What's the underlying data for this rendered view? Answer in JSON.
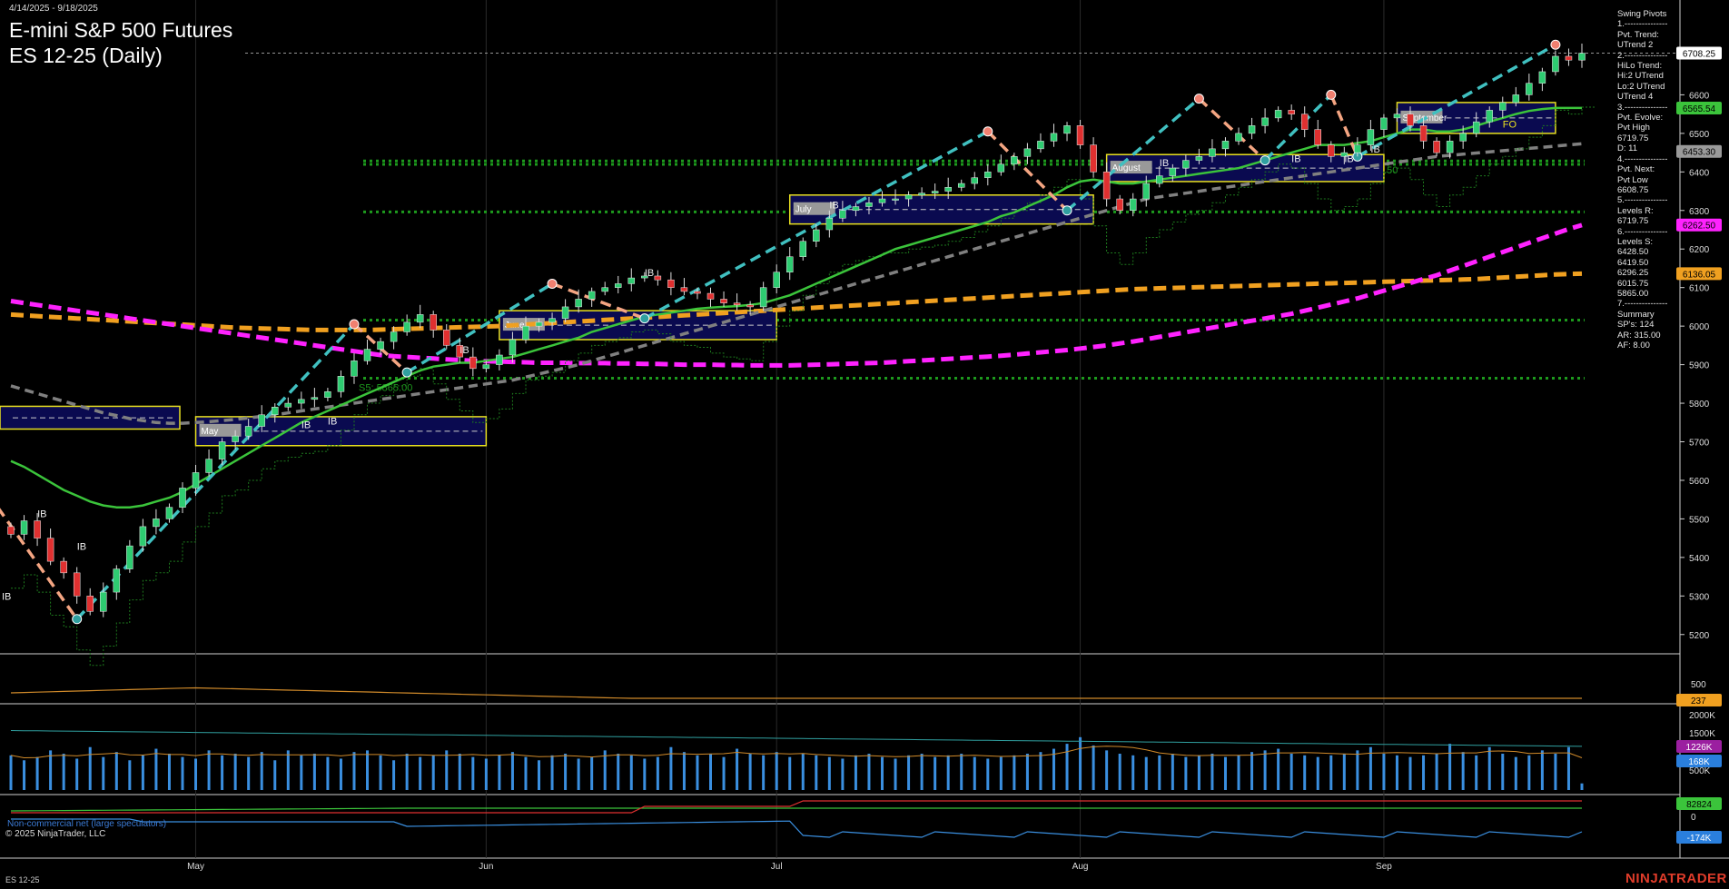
{
  "header": {
    "date_range": "4/14/2025 - 9/18/2025",
    "title": "E-mini S&P 500 Futures",
    "subtitle": "ES 12-25 (Daily)"
  },
  "sidebar": {
    "lines": [
      "Swing Pivots",
      "1.---------------",
      "Pvt. Trend:",
      "UTrend 2",
      "2.---------------",
      "HiLo Trend:",
      "Hi:2 UTrend",
      "Lo:2 UTrend",
      "UTrend 4",
      "3.---------------",
      "Pvt. Evolve:",
      "Pvt High",
      "6719.75",
      "D: 11",
      "4.---------------",
      "Pvt. Next:",
      "Pvt Low",
      "6608.75",
      "5.---------------",
      "Levels R:",
      "6719.75",
      "6.---------------",
      "Levels S:",
      "6428.50",
      "6419.50",
      "6296.25",
      "6015.75",
      "5865.00",
      "7.---------------",
      "Summary",
      "SP's: 124",
      "AR: 315.00",
      "AF: 8.00"
    ]
  },
  "colors": {
    "up": "#2ecc71",
    "down": "#e03030",
    "swing_up": "#40c0c0",
    "swing_down": "#f4a582",
    "ema_fast": "#3bc43b",
    "ma_gray": "#808080",
    "ma_magenta": "#ff22ff",
    "ma_orange": "#f0a020",
    "volume": "#3a8fe0",
    "support": "#1d9a1d"
  },
  "chart_data": {
    "type": "candlestick",
    "x_axis": {
      "ticks": [
        "May",
        "Jun",
        "Jul",
        "Aug",
        "Sep"
      ]
    },
    "y_axis": {
      "ticks": [
        5200,
        5300,
        5400,
        5500,
        5600,
        5700,
        5800,
        5900,
        6000,
        6100,
        6200,
        6300,
        6400,
        6500,
        6600
      ],
      "range": [
        5150,
        6780
      ]
    },
    "price_badges": [
      {
        "value": "6708.25",
        "color": "#ffffff",
        "text_color": "#000000"
      },
      {
        "value": "6565.54",
        "color": "#3bc43b",
        "text_color": "#000000"
      },
      {
        "value": "6453.30",
        "color": "#9a9a9a",
        "text_color": "#000000"
      },
      {
        "value": "6262.50",
        "color": "#ff22ff",
        "text_color": "#000000"
      },
      {
        "value": "6136.05",
        "color": "#f0a020",
        "text_color": "#000000"
      }
    ],
    "current_price": 6708.25,
    "levels": [
      {
        "value": 6428.5,
        "label": "S1: 6428.50"
      },
      {
        "value": 6419.5,
        "label": "S2: 6419.50"
      },
      {
        "value": 6296.25,
        "label": "S3: 6296.25"
      },
      {
        "value": 6015.75,
        "label": "S4: 6015.75"
      },
      {
        "value": 5865.0,
        "label": "S5: 5865.00"
      }
    ],
    "month_boxes": [
      {
        "label": "May",
        "start": 14,
        "end": 36,
        "high": 5765,
        "low": 5690
      },
      {
        "label": "June",
        "start": 37,
        "end": 58,
        "high": 6040,
        "low": 5965
      },
      {
        "label": "July",
        "start": 59,
        "end": 82,
        "high": 6340,
        "low": 6265
      },
      {
        "label": "August",
        "start": 83,
        "end": 104,
        "high": 6445,
        "low": 6375
      },
      {
        "label": "September",
        "start": 105,
        "end": 117,
        "high": 6580,
        "low": 6500
      }
    ],
    "pivot_labels": [
      "IB",
      "FO"
    ],
    "closes": [
      5460,
      5495,
      5450,
      5390,
      5360,
      5300,
      5260,
      5310,
      5370,
      5430,
      5480,
      5500,
      5530,
      5580,
      5620,
      5655,
      5700,
      5715,
      5740,
      5770,
      5790,
      5800,
      5810,
      5815,
      5830,
      5870,
      5910,
      5940,
      5960,
      5985,
      6010,
      6030,
      5990,
      5950,
      5920,
      5890,
      5900,
      5925,
      5965,
      6000,
      6010,
      6020,
      6050,
      6070,
      6090,
      6100,
      6110,
      6125,
      6130,
      6120,
      6100,
      6090,
      6085,
      6070,
      6060,
      6055,
      6050,
      6100,
      6140,
      6180,
      6220,
      6250,
      6280,
      6300,
      6310,
      6320,
      6330,
      6330,
      6340,
      6345,
      6350,
      6360,
      6370,
      6385,
      6400,
      6420,
      6440,
      6460,
      6480,
      6500,
      6520,
      6470,
      6400,
      6330,
      6300,
      6330,
      6370,
      6390,
      6410,
      6430,
      6440,
      6460,
      6480,
      6500,
      6520,
      6540,
      6560,
      6550,
      6510,
      6470,
      6440,
      6450,
      6470,
      6510,
      6540,
      6550,
      6520,
      6480,
      6450,
      6480,
      6500,
      6530,
      6560,
      6580,
      6600,
      6630,
      6660,
      6700,
      6690,
      6708
    ],
    "ema_fast": [
      5650,
      5635,
      5615,
      5595,
      5575,
      5560,
      5545,
      5535,
      5530,
      5530,
      5535,
      5545,
      5555,
      5570,
      5590,
      5610,
      5630,
      5650,
      5670,
      5690,
      5710,
      5730,
      5750,
      5765,
      5780,
      5795,
      5810,
      5825,
      5840,
      5855,
      5870,
      5885,
      5895,
      5900,
      5905,
      5905,
      5910,
      5915,
      5920,
      5930,
      5940,
      5950,
      5960,
      5970,
      5985,
      5995,
      6005,
      6015,
      6025,
      6030,
      6035,
      6040,
      6045,
      6048,
      6050,
      6052,
      6055,
      6060,
      6070,
      6080,
      6095,
      6110,
      6125,
      6140,
      6155,
      6170,
      6185,
      6200,
      6210,
      6220,
      6230,
      6240,
      6250,
      6260,
      6270,
      6285,
      6295,
      6310,
      6325,
      6340,
      6360,
      6375,
      6380,
      6375,
      6370,
      6370,
      6375,
      6380,
      6385,
      6390,
      6395,
      6400,
      6405,
      6410,
      6420,
      6430,
      6440,
      6450,
      6460,
      6470,
      6470,
      6470,
      6475,
      6480,
      6490,
      6500,
      6510,
      6510,
      6505,
      6505,
      6510,
      6520,
      6530,
      6540,
      6550,
      6558,
      6563,
      6566,
      6566,
      6566
    ],
    "sma_gray": [
      5845,
      5835,
      5825,
      5815,
      5805,
      5795,
      5785,
      5775,
      5768,
      5760,
      5755,
      5750,
      5748,
      5748,
      5750,
      5752,
      5755,
      5758,
      5762,
      5766,
      5770,
      5775,
      5780,
      5785,
      5790,
      5795,
      5800,
      5805,
      5810,
      5815,
      5820,
      5825,
      5830,
      5835,
      5840,
      5845,
      5850,
      5855,
      5860,
      5868,
      5876,
      5884,
      5892,
      5900,
      5910,
      5920,
      5930,
      5940,
      5950,
      5960,
      5970,
      5980,
      5990,
      6000,
      6010,
      6020,
      6030,
      6040,
      6050,
      6060,
      6070,
      6080,
      6090,
      6100,
      6110,
      6120,
      6130,
      6140,
      6150,
      6160,
      6170,
      6180,
      6190,
      6200,
      6210,
      6220,
      6230,
      6240,
      6250,
      6260,
      6270,
      6280,
      6290,
      6300,
      6310,
      6320,
      6330,
      6335,
      6340,
      6345,
      6350,
      6355,
      6360,
      6365,
      6370,
      6375,
      6380,
      6385,
      6390,
      6395,
      6400,
      6405,
      6410,
      6415,
      6420,
      6425,
      6430,
      6435,
      6440,
      6443,
      6446,
      6449,
      6452,
      6455,
      6458,
      6461,
      6464,
      6467,
      6470,
      6473
    ],
    "sma_magenta": [
      6065,
      6060,
      6055,
      6050,
      6045,
      6040,
      6035,
      6030,
      6025,
      6020,
      6015,
      6010,
      6005,
      6000,
      5995,
      5990,
      5985,
      5980,
      5975,
      5970,
      5965,
      5960,
      5955,
      5950,
      5945,
      5940,
      5935,
      5930,
      5925,
      5922,
      5920,
      5918,
      5916,
      5914,
      5912,
      5910,
      5909,
      5908,
      5907,
      5906,
      5905,
      5905,
      5905,
      5904,
      5904,
      5904,
      5903,
      5903,
      5902,
      5902,
      5901,
      5900,
      5900,
      5900,
      5899,
      5899,
      5898,
      5898,
      5898,
      5898,
      5899,
      5900,
      5901,
      5902,
      5903,
      5904,
      5905,
      5907,
      5909,
      5911,
      5913,
      5915,
      5917,
      5919,
      5921,
      5923,
      5926,
      5929,
      5932,
      5935,
      5938,
      5942,
      5946,
      5950,
      5955,
      5960,
      5966,
      5972,
      5978,
      5984,
      5990,
      5996,
      6002,
      6008,
      6014,
      6020,
      6026,
      6032,
      6040,
      6048,
      6056,
      6064,
      6072,
      6082,
      6092,
      6102,
      6112,
      6122,
      6132,
      6144,
      6156,
      6168,
      6180,
      6192,
      6204,
      6216,
      6228,
      6240,
      6252,
      6262
    ],
    "sma_orange": [
      6030,
      6028,
      6026,
      6024,
      6022,
      6020,
      6018,
      6016,
      6014,
      6012,
      6010,
      6008,
      6006,
      6004,
      6002,
      6000,
      5998,
      5996,
      5995,
      5994,
      5993,
      5992,
      5991,
      5990,
      5990,
      5990,
      5990,
      5990,
      5991,
      5992,
      5993,
      5994,
      5995,
      5996,
      5997,
      5998,
      5999,
      6000,
      6002,
      6004,
      6006,
      6008,
      6010,
      6012,
      6014,
      6016,
      6018,
      6020,
      6022,
      6024,
      6026,
      6028,
      6030,
      6032,
      6034,
      6036,
      6038,
      6040,
      6042,
      6044,
      6046,
      6048,
      6050,
      6052,
      6054,
      6056,
      6058,
      6060,
      6062,
      6064,
      6066,
      6068,
      6070,
      6072,
      6074,
      6076,
      6078,
      6080,
      6082,
      6084,
      6086,
      6088,
      6090,
      6092,
      6094,
      6096,
      6097,
      6098,
      6099,
      6100,
      6101,
      6102,
      6103,
      6104,
      6105,
      6106,
      6107,
      6108,
      6109,
      6110,
      6111,
      6112,
      6113,
      6114,
      6115,
      6116,
      6117,
      6118,
      6119,
      6120,
      6121,
      6122,
      6124,
      6126,
      6128,
      6130,
      6132,
      6134,
      6135,
      6136
    ],
    "atr_panel": {
      "badge": "237",
      "tick": "500"
    },
    "volume_panel": {
      "ticks": [
        "2000K",
        "1500K",
        "500K"
      ],
      "badges": [
        {
          "value": "1226K",
          "color": "#9b1fa0"
        },
        {
          "value": "168K",
          "color": "#2a7fdd"
        }
      ],
      "values": [
        1050,
        900,
        1000,
        1200,
        1100,
        950,
        1300,
        1000,
        1150,
        900,
        1050,
        1250,
        1100,
        1000,
        950,
        1200,
        1050,
        1100,
        1000,
        1150,
        900,
        1200,
        1050,
        1100,
        1000,
        950,
        1150,
        1200,
        1050,
        900,
        1100,
        1000,
        1050,
        1200,
        1100,
        1000,
        950,
        1050,
        1150,
        1000,
        900,
        1050,
        1100,
        950,
        1000,
        1200,
        1100,
        1050,
        950,
        1000,
        1300,
        1150,
        1050,
        1100,
        1000,
        1250,
        1100,
        1050,
        1150,
        1000,
        1100,
        1050,
        1000,
        950,
        1050,
        1100,
        1000,
        950,
        1050,
        1100,
        1000,
        1050,
        1100,
        1000,
        950,
        1000,
        1050,
        1100,
        1150,
        1250,
        1400,
        1600,
        1350,
        1200,
        1100,
        1050,
        1000,
        1050,
        1100,
        1000,
        1050,
        1100,
        1000,
        1050,
        1150,
        1200,
        1250,
        1100,
        1050,
        1000,
        1050,
        1100,
        1200,
        1300,
        1100,
        1050,
        1000,
        1050,
        1100,
        1400,
        1150,
        1050,
        1300,
        1100,
        1000,
        1050,
        1200,
        1100,
        1300,
        200
      ]
    },
    "cot_panel": {
      "label": "Non-commercial net (large speculators)",
      "ticks": [
        "0"
      ],
      "badges": [
        {
          "value": "82824",
          "color": "#3bc43b"
        },
        {
          "value": "-174K",
          "color": "#2a7fdd"
        }
      ]
    }
  },
  "footer": {
    "copyright": "© 2025 NinjaTrader, LLC",
    "symbol": "ES 12-25",
    "brand": "NINJATRADER"
  }
}
